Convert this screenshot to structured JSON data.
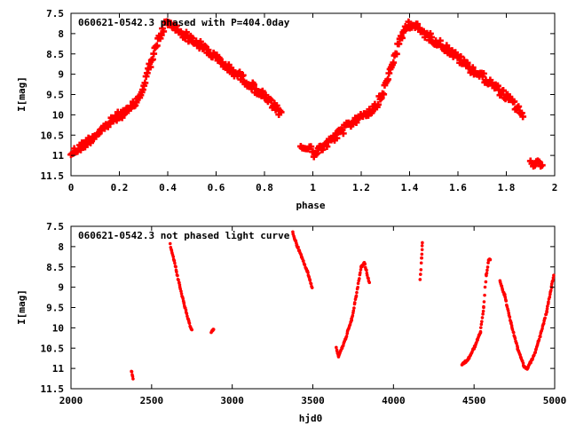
{
  "chart_data": [
    {
      "type": "scatter",
      "title": "060621-0542.3 phased with P=404.0day",
      "xlabel": "phase",
      "ylabel": "I[mag]",
      "xlim": [
        0,
        2
      ],
      "ylim": [
        11.5,
        7.5
      ],
      "y_inverted": true,
      "grid": false,
      "marker_color": "#ff0000",
      "marker": "plus-filled",
      "xticks": [
        "0",
        "0.2",
        "0.4",
        "0.6",
        "0.8",
        "1",
        "1.2",
        "1.4",
        "1.6",
        "1.8",
        "2"
      ],
      "yticks": [
        "7.5",
        "8",
        "8.5",
        "9",
        "9.5",
        "10",
        "10.5",
        "11",
        "11.5"
      ],
      "curve_nodes": [
        [
          0.0,
          10.95
        ],
        [
          0.05,
          10.75
        ],
        [
          0.1,
          10.5
        ],
        [
          0.15,
          10.25
        ],
        [
          0.2,
          10.0
        ],
        [
          0.24,
          9.9
        ],
        [
          0.28,
          9.6
        ],
        [
          0.3,
          9.3
        ],
        [
          0.33,
          8.7
        ],
        [
          0.36,
          8.2
        ],
        [
          0.39,
          7.75
        ],
        [
          0.42,
          7.8
        ],
        [
          0.45,
          7.95
        ],
        [
          0.5,
          8.15
        ],
        [
          0.55,
          8.35
        ],
        [
          0.6,
          8.6
        ],
        [
          0.65,
          8.85
        ],
        [
          0.7,
          9.05
        ],
        [
          0.75,
          9.3
        ],
        [
          0.8,
          9.55
        ],
        [
          0.84,
          9.8
        ],
        [
          0.87,
          10.0
        ]
      ],
      "gap": [
        0.88,
        0.95
      ],
      "scatter_spread": 0.1
    },
    {
      "type": "scatter",
      "title": "060621-0542.3 not phased light curve",
      "xlabel": "hjd0",
      "ylabel": "I[mag]",
      "xlim": [
        2000,
        5000
      ],
      "ylim": [
        11.5,
        7.5
      ],
      "y_inverted": true,
      "grid": false,
      "marker_color": "#ff0000",
      "marker": "dot",
      "xticks": [
        "2000",
        "2500",
        "3000",
        "3500",
        "4000",
        "4500",
        "5000"
      ],
      "yticks": [
        "7.5",
        "8",
        "8.5",
        "9",
        "9.5",
        "10",
        "10.5",
        "11",
        "11.5"
      ],
      "segments": [
        [
          [
            2375,
            11.05
          ],
          [
            2385,
            11.25
          ]
        ],
        [
          [
            2615,
            7.95
          ],
          [
            2640,
            8.35
          ],
          [
            2670,
            8.9
          ],
          [
            2700,
            9.4
          ],
          [
            2730,
            9.85
          ],
          [
            2750,
            10.05
          ]
        ],
        [
          [
            2870,
            10.1
          ],
          [
            2885,
            10.05
          ]
        ],
        [
          [
            3375,
            7.65
          ],
          [
            3400,
            7.95
          ],
          [
            3430,
            8.25
          ],
          [
            3460,
            8.55
          ],
          [
            3480,
            8.8
          ],
          [
            3495,
            9.0
          ]
        ],
        [
          [
            3645,
            10.5
          ],
          [
            3660,
            10.7
          ],
          [
            3700,
            10.3
          ],
          [
            3740,
            9.8
          ],
          [
            3770,
            9.2
          ],
          [
            3800,
            8.5
          ],
          [
            3820,
            8.4
          ],
          [
            3850,
            8.9
          ]
        ],
        [
          [
            4165,
            8.8
          ],
          [
            4175,
            8.3
          ],
          [
            4180,
            7.9
          ]
        ],
        [
          [
            4425,
            10.9
          ],
          [
            4460,
            10.8
          ],
          [
            4500,
            10.5
          ],
          [
            4540,
            10.1
          ],
          [
            4560,
            9.5
          ],
          [
            4575,
            8.7
          ],
          [
            4590,
            8.35
          ],
          [
            4600,
            8.3
          ]
        ],
        [
          [
            4660,
            8.85
          ],
          [
            4690,
            9.2
          ],
          [
            4730,
            9.9
          ],
          [
            4770,
            10.5
          ],
          [
            4810,
            10.95
          ],
          [
            4830,
            11.0
          ],
          [
            4870,
            10.7
          ],
          [
            4910,
            10.2
          ],
          [
            4950,
            9.6
          ],
          [
            4980,
            9.0
          ],
          [
            4995,
            8.7
          ]
        ]
      ]
    }
  ]
}
